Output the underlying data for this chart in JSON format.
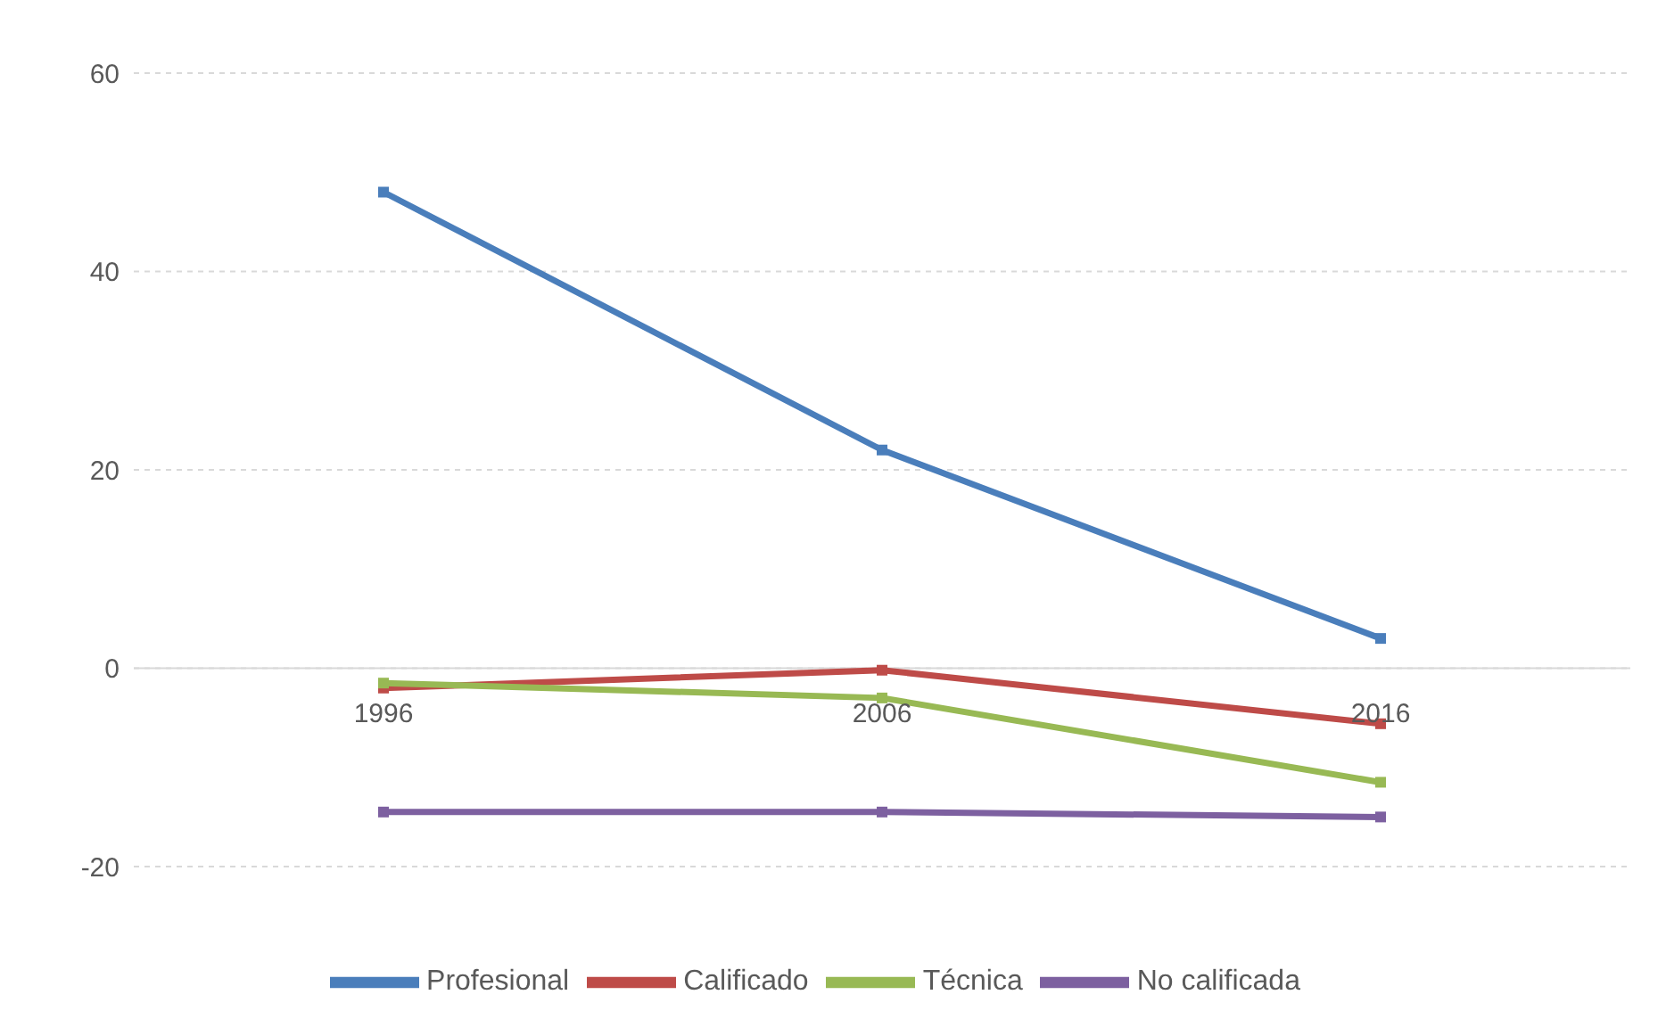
{
  "chart_data": {
    "type": "line",
    "categories": [
      "1996",
      "2006",
      "2016"
    ],
    "series": [
      {
        "name": "Profesional",
        "color": "#4a7ebb",
        "values": [
          48,
          22,
          3
        ]
      },
      {
        "name": "Calificado",
        "color": "#be4b48",
        "values": [
          -2,
          -0.2,
          -5.6
        ]
      },
      {
        "name": "Técnica",
        "color": "#98b954",
        "values": [
          -1.5,
          -3,
          -11.5
        ]
      },
      {
        "name": "No calificada",
        "color": "#7d60a0",
        "values": [
          -14.5,
          -14.5,
          -15
        ]
      }
    ],
    "ylim": [
      -20,
      60
    ],
    "yticks": [
      -20,
      0,
      20,
      40,
      60
    ],
    "grid": "y",
    "legend": "bottom",
    "marker": "square",
    "line_style": "solid"
  }
}
